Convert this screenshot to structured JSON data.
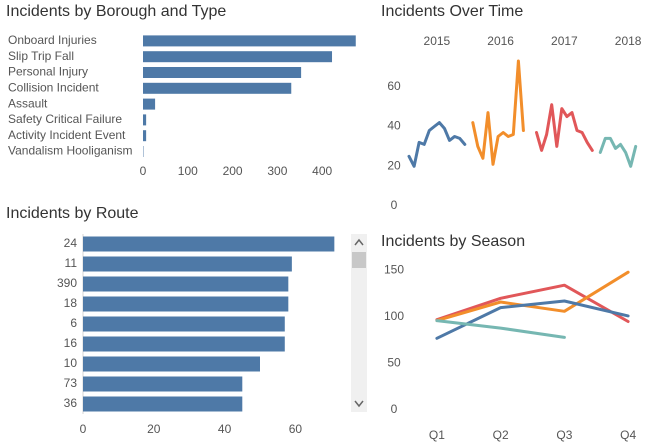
{
  "chart_data": [
    {
      "type": "barh",
      "title": "Incidents by Borough and Type",
      "categories": [
        "Onboard Injuries",
        "Slip Trip Fall",
        "Personal Injury",
        "Collision Incident",
        "Assault",
        "Safety Critical Failure",
        "Activity Incident Event",
        "Vandalism Hooliganism"
      ],
      "values": [
        475,
        422,
        353,
        331,
        27,
        7,
        7,
        1
      ],
      "color": "#4e79a7",
      "xlim": [
        0,
        480
      ],
      "xticks": [
        0,
        100,
        200,
        300,
        400
      ]
    },
    {
      "type": "line",
      "title": "Incidents Over Time",
      "series": [
        {
          "name": "2015",
          "color": "#4e79a7",
          "values": [
            25,
            20,
            32,
            31,
            38,
            40,
            42,
            39,
            33,
            35,
            34,
            31
          ]
        },
        {
          "name": "2016",
          "color": "#f28e2b",
          "values": [
            42,
            30,
            24,
            47,
            21,
            35,
            37,
            35,
            36,
            73,
            38
          ]
        },
        {
          "name": "2017",
          "color": "#e15759",
          "values": [
            37,
            28,
            36,
            51,
            30,
            49,
            45,
            47,
            38,
            37,
            32,
            28
          ]
        },
        {
          "name": "2018",
          "color": "#76b7b2",
          "values": [
            27,
            34,
            34,
            29,
            31,
            27,
            20,
            30
          ]
        }
      ],
      "ylim": [
        0,
        76
      ],
      "yticks": [
        0,
        20,
        40,
        60
      ]
    },
    {
      "type": "barh",
      "title": "Incidents by Route",
      "categories": [
        "24",
        "11",
        "390",
        "18",
        "6",
        "16",
        "10",
        "73",
        "36"
      ],
      "values": [
        71,
        59,
        58,
        58,
        57,
        57,
        50,
        45,
        45
      ],
      "color": "#4e79a7",
      "xlim": [
        0,
        75
      ],
      "xticks": [
        0,
        20,
        40,
        60
      ]
    },
    {
      "type": "line",
      "title": "Incidents by Season",
      "categories": [
        "Q1",
        "Q2",
        "Q3",
        "Q4"
      ],
      "series": [
        {
          "color": "#e15759",
          "values": [
            97,
            120,
            134,
            95
          ]
        },
        {
          "color": "#f28e2b",
          "values": [
            96,
            116,
            106,
            148
          ]
        },
        {
          "color": "#4e79a7",
          "values": [
            77,
            110,
            117,
            101
          ]
        },
        {
          "color": "#76b7b2",
          "values": [
            96,
            88,
            78,
            null
          ]
        }
      ],
      "ylim": [
        0,
        160
      ],
      "yticks": [
        0,
        50,
        100,
        150
      ]
    }
  ]
}
